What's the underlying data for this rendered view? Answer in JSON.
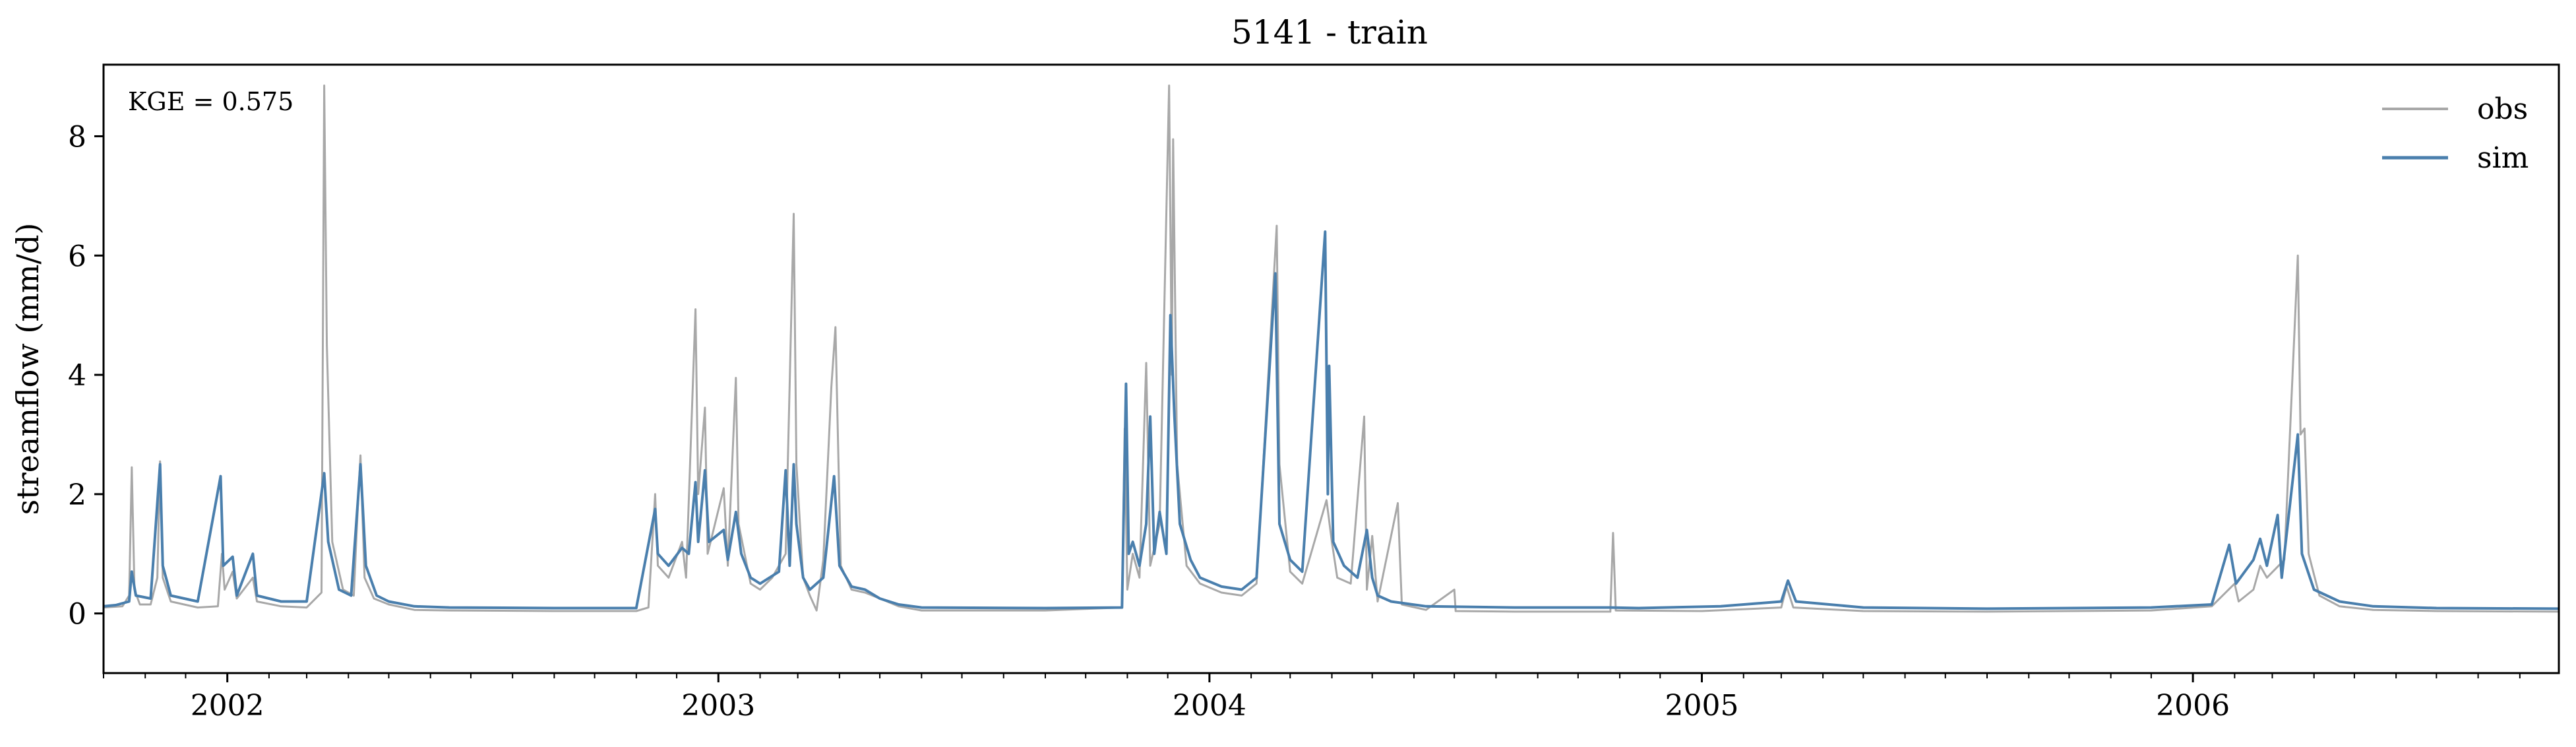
{
  "chart_data": {
    "type": "line",
    "title": "5141 - train",
    "xlabel": "",
    "ylabel": "streamflow (mm/d)",
    "annotation": "KGE = 0.575",
    "xlim": [
      "2001-10-01",
      "2006-09-30"
    ],
    "ylim": [
      -1,
      9.2
    ],
    "yticks": [
      0,
      2,
      4,
      6,
      8
    ],
    "xticks": [
      {
        "date": "2002-01-01",
        "label": "2002"
      },
      {
        "date": "2003-01-01",
        "label": "2003"
      },
      {
        "date": "2004-01-01",
        "label": "2004"
      },
      {
        "date": "2005-01-01",
        "label": "2005"
      },
      {
        "date": "2006-01-01",
        "label": "2006"
      }
    ],
    "grid": false,
    "legend": "top-right",
    "series": [
      {
        "name": "obs",
        "color": "#a8a8a8",
        "points": [
          [
            "2001-10-01",
            0.1
          ],
          [
            "2001-10-15",
            0.12
          ],
          [
            "2001-10-20",
            0.3
          ],
          [
            "2001-10-22",
            2.45
          ],
          [
            "2001-10-24",
            0.4
          ],
          [
            "2001-10-28",
            0.15
          ],
          [
            "2001-11-05",
            0.15
          ],
          [
            "2001-11-10",
            0.6
          ],
          [
            "2001-11-12",
            2.55
          ],
          [
            "2001-11-14",
            0.6
          ],
          [
            "2001-11-20",
            0.2
          ],
          [
            "2001-12-10",
            0.1
          ],
          [
            "2001-12-25",
            0.12
          ],
          [
            "2001-12-28",
            1.0
          ],
          [
            "2001-12-30",
            0.4
          ],
          [
            "2002-01-05",
            0.7
          ],
          [
            "2002-01-08",
            0.25
          ],
          [
            "2002-01-20",
            0.6
          ],
          [
            "2002-01-23",
            0.2
          ],
          [
            "2002-02-10",
            0.12
          ],
          [
            "2002-03-01",
            0.1
          ],
          [
            "2002-03-12",
            0.35
          ],
          [
            "2002-03-14",
            8.85
          ],
          [
            "2002-03-16",
            4.5
          ],
          [
            "2002-03-20",
            1.2
          ],
          [
            "2002-03-28",
            0.4
          ],
          [
            "2002-04-05",
            0.3
          ],
          [
            "2002-04-08",
            1.8
          ],
          [
            "2002-04-10",
            2.65
          ],
          [
            "2002-04-13",
            0.6
          ],
          [
            "2002-04-20",
            0.25
          ],
          [
            "2002-05-01",
            0.15
          ],
          [
            "2002-05-20",
            0.06
          ],
          [
            "2002-06-15",
            0.05
          ],
          [
            "2002-09-01",
            0.04
          ],
          [
            "2002-11-01",
            0.04
          ],
          [
            "2002-11-10",
            0.1
          ],
          [
            "2002-11-15",
            2.0
          ],
          [
            "2002-11-17",
            0.8
          ],
          [
            "2002-11-25",
            0.6
          ],
          [
            "2002-12-05",
            1.2
          ],
          [
            "2002-12-08",
            0.6
          ],
          [
            "2002-12-15",
            5.1
          ],
          [
            "2002-12-17",
            2.0
          ],
          [
            "2002-12-22",
            3.45
          ],
          [
            "2002-12-24",
            1.0
          ],
          [
            "2003-01-05",
            2.1
          ],
          [
            "2003-01-08",
            0.8
          ],
          [
            "2003-01-14",
            3.95
          ],
          [
            "2003-01-16",
            1.5
          ],
          [
            "2003-01-25",
            0.5
          ],
          [
            "2003-02-01",
            0.4
          ],
          [
            "2003-02-10",
            0.6
          ],
          [
            "2003-02-20",
            1.0
          ],
          [
            "2003-02-26",
            6.7
          ],
          [
            "2003-02-28",
            2.5
          ],
          [
            "2003-03-05",
            0.6
          ],
          [
            "2003-03-10",
            0.3
          ],
          [
            "2003-03-15",
            0.05
          ],
          [
            "2003-03-20",
            0.9
          ],
          [
            "2003-03-26",
            3.8
          ],
          [
            "2003-03-29",
            4.8
          ],
          [
            "2003-04-02",
            0.8
          ],
          [
            "2003-04-10",
            0.4
          ],
          [
            "2003-04-20",
            0.35
          ],
          [
            "2003-05-01",
            0.25
          ],
          [
            "2003-05-15",
            0.12
          ],
          [
            "2003-06-01",
            0.05
          ],
          [
            "2003-09-01",
            0.05
          ],
          [
            "2003-10-28",
            0.1
          ],
          [
            "2003-10-30",
            3.1
          ],
          [
            "2003-11-01",
            0.4
          ],
          [
            "2003-11-05",
            1.0
          ],
          [
            "2003-11-10",
            0.6
          ],
          [
            "2003-11-15",
            4.2
          ],
          [
            "2003-11-18",
            0.8
          ],
          [
            "2003-11-25",
            1.5
          ],
          [
            "2003-12-02",
            8.85
          ],
          [
            "2003-12-04",
            4.0
          ],
          [
            "2003-12-05",
            7.95
          ],
          [
            "2003-12-08",
            2.5
          ],
          [
            "2003-12-15",
            0.8
          ],
          [
            "2003-12-25",
            0.5
          ],
          [
            "2004-01-10",
            0.35
          ],
          [
            "2004-01-25",
            0.3
          ],
          [
            "2004-02-05",
            0.5
          ],
          [
            "2004-02-20",
            6.5
          ],
          [
            "2004-02-22",
            2.5
          ],
          [
            "2004-03-01",
            0.7
          ],
          [
            "2004-03-10",
            0.5
          ],
          [
            "2004-03-28",
            1.9
          ],
          [
            "2004-04-01",
            1.2
          ],
          [
            "2004-04-05",
            0.6
          ],
          [
            "2004-04-15",
            0.5
          ],
          [
            "2004-04-25",
            3.3
          ],
          [
            "2004-04-27",
            0.4
          ],
          [
            "2004-05-01",
            1.3
          ],
          [
            "2004-05-05",
            0.2
          ],
          [
            "2004-05-20",
            1.85
          ],
          [
            "2004-05-23",
            0.15
          ],
          [
            "2004-06-10",
            0.06
          ],
          [
            "2004-07-01",
            0.4
          ],
          [
            "2004-07-02",
            0.04
          ],
          [
            "2004-08-15",
            0.03
          ],
          [
            "2004-10-25",
            0.03
          ],
          [
            "2004-10-27",
            1.35
          ],
          [
            "2004-10-29",
            0.05
          ],
          [
            "2005-01-01",
            0.04
          ],
          [
            "2005-03-01",
            0.1
          ],
          [
            "2005-03-05",
            0.45
          ],
          [
            "2005-03-10",
            0.1
          ],
          [
            "2005-05-01",
            0.04
          ],
          [
            "2005-08-01",
            0.03
          ],
          [
            "2005-12-01",
            0.05
          ],
          [
            "2006-01-15",
            0.12
          ],
          [
            "2006-02-01",
            0.5
          ],
          [
            "2006-02-04",
            0.2
          ],
          [
            "2006-02-15",
            0.4
          ],
          [
            "2006-02-20",
            0.8
          ],
          [
            "2006-02-25",
            0.6
          ],
          [
            "2006-03-10",
            0.9
          ],
          [
            "2006-03-20",
            6.0
          ],
          [
            "2006-03-22",
            3.0
          ],
          [
            "2006-03-25",
            3.1
          ],
          [
            "2006-03-28",
            1.0
          ],
          [
            "2006-04-05",
            0.3
          ],
          [
            "2006-04-20",
            0.12
          ],
          [
            "2006-05-15",
            0.06
          ],
          [
            "2006-07-01",
            0.04
          ],
          [
            "2006-09-30",
            0.03
          ]
        ]
      },
      {
        "name": "sim",
        "color": "#4a7fad",
        "points": [
          [
            "2001-10-01",
            0.12
          ],
          [
            "2001-10-10",
            0.14
          ],
          [
            "2001-10-20",
            0.2
          ],
          [
            "2001-10-22",
            0.7
          ],
          [
            "2001-10-25",
            0.3
          ],
          [
            "2001-11-05",
            0.25
          ],
          [
            "2001-11-12",
            2.5
          ],
          [
            "2001-11-14",
            0.8
          ],
          [
            "2001-11-20",
            0.3
          ],
          [
            "2001-12-10",
            0.2
          ],
          [
            "2001-12-27",
            2.3
          ],
          [
            "2001-12-29",
            0.8
          ],
          [
            "2002-01-05",
            0.95
          ],
          [
            "2002-01-08",
            0.3
          ],
          [
            "2002-01-20",
            1.0
          ],
          [
            "2002-01-23",
            0.3
          ],
          [
            "2002-02-10",
            0.2
          ],
          [
            "2002-03-01",
            0.2
          ],
          [
            "2002-03-14",
            2.35
          ],
          [
            "2002-03-17",
            1.2
          ],
          [
            "2002-03-25",
            0.4
          ],
          [
            "2002-04-03",
            0.3
          ],
          [
            "2002-04-10",
            2.5
          ],
          [
            "2002-04-14",
            0.8
          ],
          [
            "2002-04-22",
            0.3
          ],
          [
            "2002-05-01",
            0.2
          ],
          [
            "2002-05-20",
            0.12
          ],
          [
            "2002-06-15",
            0.1
          ],
          [
            "2002-09-01",
            0.09
          ],
          [
            "2002-11-01",
            0.09
          ],
          [
            "2002-11-15",
            1.75
          ],
          [
            "2002-11-17",
            1.0
          ],
          [
            "2002-11-25",
            0.8
          ],
          [
            "2002-12-05",
            1.1
          ],
          [
            "2002-12-10",
            1.0
          ],
          [
            "2002-12-15",
            2.2
          ],
          [
            "2002-12-17",
            1.2
          ],
          [
            "2002-12-22",
            2.4
          ],
          [
            "2002-12-25",
            1.2
          ],
          [
            "2003-01-05",
            1.4
          ],
          [
            "2003-01-08",
            0.9
          ],
          [
            "2003-01-14",
            1.7
          ],
          [
            "2003-01-18",
            1.0
          ],
          [
            "2003-01-25",
            0.6
          ],
          [
            "2003-02-01",
            0.5
          ],
          [
            "2003-02-15",
            0.7
          ],
          [
            "2003-02-20",
            2.4
          ],
          [
            "2003-02-23",
            0.8
          ],
          [
            "2003-02-26",
            2.5
          ],
          [
            "2003-02-28",
            1.5
          ],
          [
            "2003-03-05",
            0.6
          ],
          [
            "2003-03-10",
            0.4
          ],
          [
            "2003-03-20",
            0.6
          ],
          [
            "2003-03-28",
            2.3
          ],
          [
            "2003-04-01",
            0.8
          ],
          [
            "2003-04-10",
            0.45
          ],
          [
            "2003-04-20",
            0.4
          ],
          [
            "2003-05-01",
            0.25
          ],
          [
            "2003-05-15",
            0.15
          ],
          [
            "2003-06-01",
            0.1
          ],
          [
            "2003-09-01",
            0.09
          ],
          [
            "2003-10-28",
            0.1
          ],
          [
            "2003-10-31",
            3.85
          ],
          [
            "2003-11-02",
            1.0
          ],
          [
            "2003-11-05",
            1.2
          ],
          [
            "2003-11-10",
            0.8
          ],
          [
            "2003-11-15",
            1.5
          ],
          [
            "2003-11-18",
            3.3
          ],
          [
            "2003-11-21",
            1.0
          ],
          [
            "2003-11-25",
            1.7
          ],
          [
            "2003-11-30",
            1.0
          ],
          [
            "2003-12-03",
            5.0
          ],
          [
            "2003-12-06",
            3.3
          ],
          [
            "2003-12-10",
            1.5
          ],
          [
            "2003-12-18",
            0.9
          ],
          [
            "2003-12-25",
            0.6
          ],
          [
            "2004-01-10",
            0.45
          ],
          [
            "2004-01-25",
            0.4
          ],
          [
            "2004-02-05",
            0.6
          ],
          [
            "2004-02-19",
            5.7
          ],
          [
            "2004-02-22",
            1.5
          ],
          [
            "2004-03-01",
            0.9
          ],
          [
            "2004-03-10",
            0.7
          ],
          [
            "2004-03-27",
            6.4
          ],
          [
            "2004-03-29",
            2.0
          ],
          [
            "2004-03-30",
            4.15
          ],
          [
            "2004-04-02",
            1.2
          ],
          [
            "2004-04-10",
            0.8
          ],
          [
            "2004-04-20",
            0.6
          ],
          [
            "2004-04-27",
            1.4
          ],
          [
            "2004-05-01",
            0.6
          ],
          [
            "2004-05-05",
            0.3
          ],
          [
            "2004-05-15",
            0.2
          ],
          [
            "2004-06-10",
            0.12
          ],
          [
            "2004-08-15",
            0.1
          ],
          [
            "2004-10-25",
            0.1
          ],
          [
            "2004-11-15",
            0.09
          ],
          [
            "2005-01-15",
            0.12
          ],
          [
            "2005-03-01",
            0.2
          ],
          [
            "2005-03-06",
            0.55
          ],
          [
            "2005-03-12",
            0.2
          ],
          [
            "2005-05-01",
            0.1
          ],
          [
            "2005-08-01",
            0.08
          ],
          [
            "2005-12-01",
            0.1
          ],
          [
            "2006-01-15",
            0.15
          ],
          [
            "2006-01-28",
            1.15
          ],
          [
            "2006-02-02",
            0.5
          ],
          [
            "2006-02-15",
            0.9
          ],
          [
            "2006-02-20",
            1.25
          ],
          [
            "2006-02-25",
            0.8
          ],
          [
            "2006-03-05",
            1.65
          ],
          [
            "2006-03-08",
            0.6
          ],
          [
            "2006-03-20",
            3.0
          ],
          [
            "2006-03-23",
            1.0
          ],
          [
            "2006-04-01",
            0.4
          ],
          [
            "2006-04-20",
            0.2
          ],
          [
            "2006-05-15",
            0.12
          ],
          [
            "2006-07-01",
            0.09
          ],
          [
            "2006-09-30",
            0.08
          ]
        ]
      }
    ]
  }
}
